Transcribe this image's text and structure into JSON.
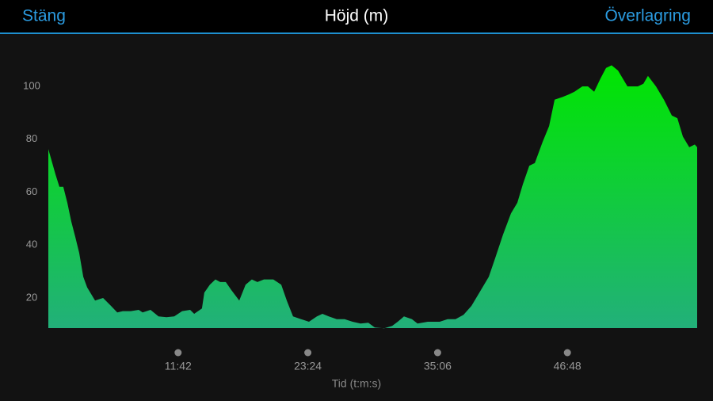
{
  "header": {
    "left": "Stäng",
    "title": "Höjd (m)",
    "right": "Överlagring"
  },
  "chart_data": {
    "type": "area",
    "x_label": "Tid (t:m:s)",
    "x": [
      0,
      39,
      60,
      81,
      103,
      124,
      146,
      167,
      189,
      210,
      253,
      296,
      339,
      373,
      403,
      446,
      489,
      510,
      553,
      596,
      639,
      681,
      724,
      767,
      789,
      831,
      844,
      874,
      904,
      930,
      960,
      990,
      1033,
      1067,
      1101,
      1131,
      1166,
      1217,
      1260,
      1290,
      1324,
      1367,
      1410,
      1453,
      1483,
      1517,
      1560,
      1603,
      1646,
      1689,
      1731,
      1766,
      1817,
      1860,
      1890,
      1924,
      1967,
      1997,
      2053,
      2117,
      2160,
      2203,
      2246,
      2289,
      2332,
      2383,
      2417,
      2460,
      2503,
      2537,
      2567,
      2602,
      2632,
      2674,
      2709,
      2739,
      2782,
      2816,
      2846,
      2889,
      2919,
      2953,
      2987,
      3017,
      3047,
      3082,
      3133,
      3189,
      3219,
      3244,
      3287,
      3330,
      3373,
      3403,
      3433,
      3467,
      3497,
      3510
    ],
    "series": [
      {
        "color_top": "#00e600",
        "color_bottom": "#22b07a",
        "values": [
          76.3,
          66.7,
          62,
          62,
          56,
          49,
          43,
          37,
          28,
          24,
          19,
          20,
          17,
          14.5,
          15,
          15,
          15.5,
          14.5,
          15.5,
          13,
          12.7,
          13,
          15,
          15.5,
          14,
          16,
          22,
          25,
          27,
          26,
          26,
          23,
          19,
          25,
          27,
          26,
          27,
          27,
          25,
          19,
          13,
          12,
          11,
          13,
          14,
          13,
          12,
          12,
          11,
          10.3,
          10.6,
          8.8,
          8.5,
          9.4,
          11,
          13,
          12,
          10.3,
          11,
          11,
          12,
          12,
          13.6,
          17,
          22,
          28,
          35,
          44,
          52,
          56,
          63,
          70,
          71,
          79,
          85,
          95,
          96,
          97,
          98,
          100,
          100,
          98,
          103,
          107,
          108,
          106,
          100,
          100,
          101,
          104,
          100,
          95,
          89,
          88,
          81,
          77,
          78,
          77
        ]
      }
    ],
    "xlim": [
      0,
      3510
    ],
    "xticks": [
      {
        "value": 702,
        "label": "11:42"
      },
      {
        "value": 1404,
        "label": "23:24"
      },
      {
        "value": 2106,
        "label": "35:06"
      },
      {
        "value": 2808,
        "label": "46:48"
      }
    ],
    "ylim": [
      8.6,
      114.7
    ],
    "yticks": [
      20,
      40,
      60,
      80,
      100
    ]
  }
}
